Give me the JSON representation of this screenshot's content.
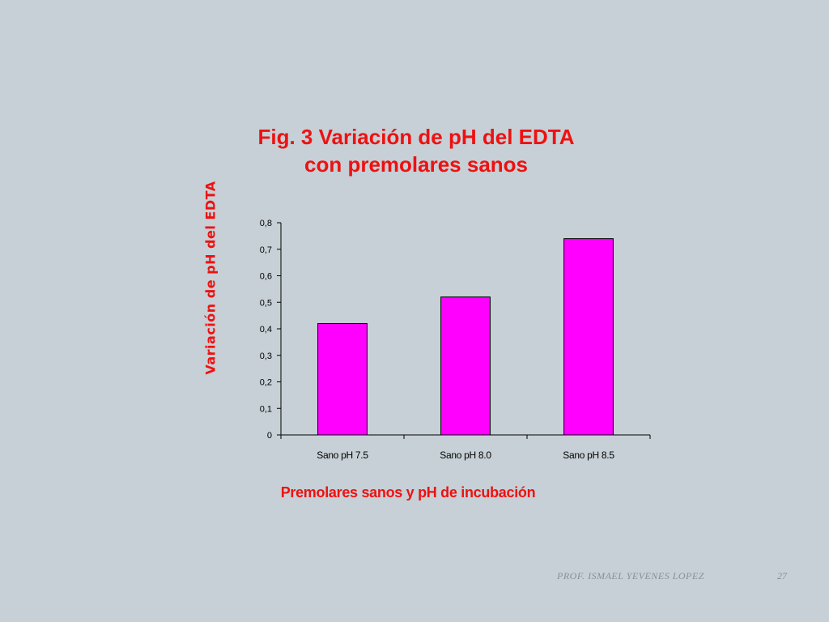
{
  "chart_data": {
    "type": "bar",
    "title_lines": [
      "Fig. 3  Variación de pH del EDTA",
      "con premolares sanos"
    ],
    "xlabel": "Premolares sanos y pH de incubación",
    "ylabel": "Variación de pH del EDTA",
    "categories": [
      "Sano pH 7.5",
      "Sano pH 8.0",
      "Sano pH 8.5"
    ],
    "values": [
      0.42,
      0.52,
      0.74
    ],
    "ylim": [
      0,
      0.8
    ],
    "yticks": [
      "0",
      "0,1",
      "0,2",
      "0,3",
      "0,4",
      "0,5",
      "0,6",
      "0,7",
      "0,8"
    ],
    "bar_color": "#ff00ff",
    "grid": false,
    "legend": "none"
  },
  "footer": {
    "author": "PROF. ISMAEL YEVENES LOPEZ",
    "page": "27"
  }
}
